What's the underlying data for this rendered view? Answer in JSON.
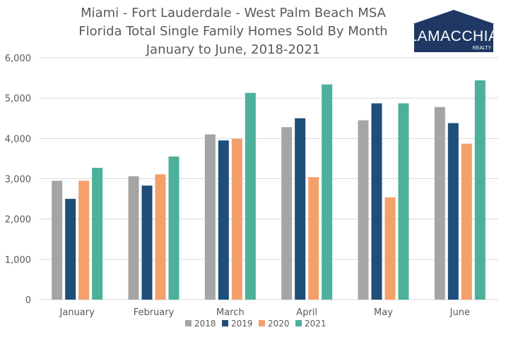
{
  "title_lines": [
    "Miami - Fort Lauderdale - West Palm Beach MSA",
    "Florida Total Single Family Homes Sold By Month",
    "January to June, 2018-2021"
  ],
  "logo": {
    "name": "LAMACCHIA",
    "sub": "REALTY",
    "color": "#1f3864"
  },
  "colors": {
    "2018": "#a5a5a5",
    "2019": "#1f4e79",
    "2020": "#f4a06b",
    "2021": "#4cb09a"
  },
  "chart_data": {
    "type": "bar",
    "title": "Miami - Fort Lauderdale - West Palm Beach MSA / Florida Total Single Family Homes Sold By Month / January to June, 2018-2021",
    "categories": [
      "January",
      "February",
      "March",
      "April",
      "May",
      "June"
    ],
    "series": [
      {
        "name": "2018",
        "values": [
          2950,
          3060,
          4100,
          4280,
          4450,
          4780
        ]
      },
      {
        "name": "2019",
        "values": [
          2500,
          2830,
          3950,
          4500,
          4870,
          4380
        ]
      },
      {
        "name": "2020",
        "values": [
          2950,
          3110,
          3990,
          3040,
          2540,
          3870
        ]
      },
      {
        "name": "2021",
        "values": [
          3270,
          3550,
          5130,
          5340,
          4870,
          5440
        ]
      }
    ],
    "ylim": [
      0,
      6000
    ],
    "yticks": [
      0,
      1000,
      2000,
      3000,
      4000,
      5000,
      6000
    ],
    "ytick_labels": [
      "0",
      "1,000",
      "2,000",
      "3,000",
      "4,000",
      "5,000",
      "6,000"
    ],
    "grid": true,
    "legend": "bottom",
    "xlabel": "",
    "ylabel": ""
  }
}
